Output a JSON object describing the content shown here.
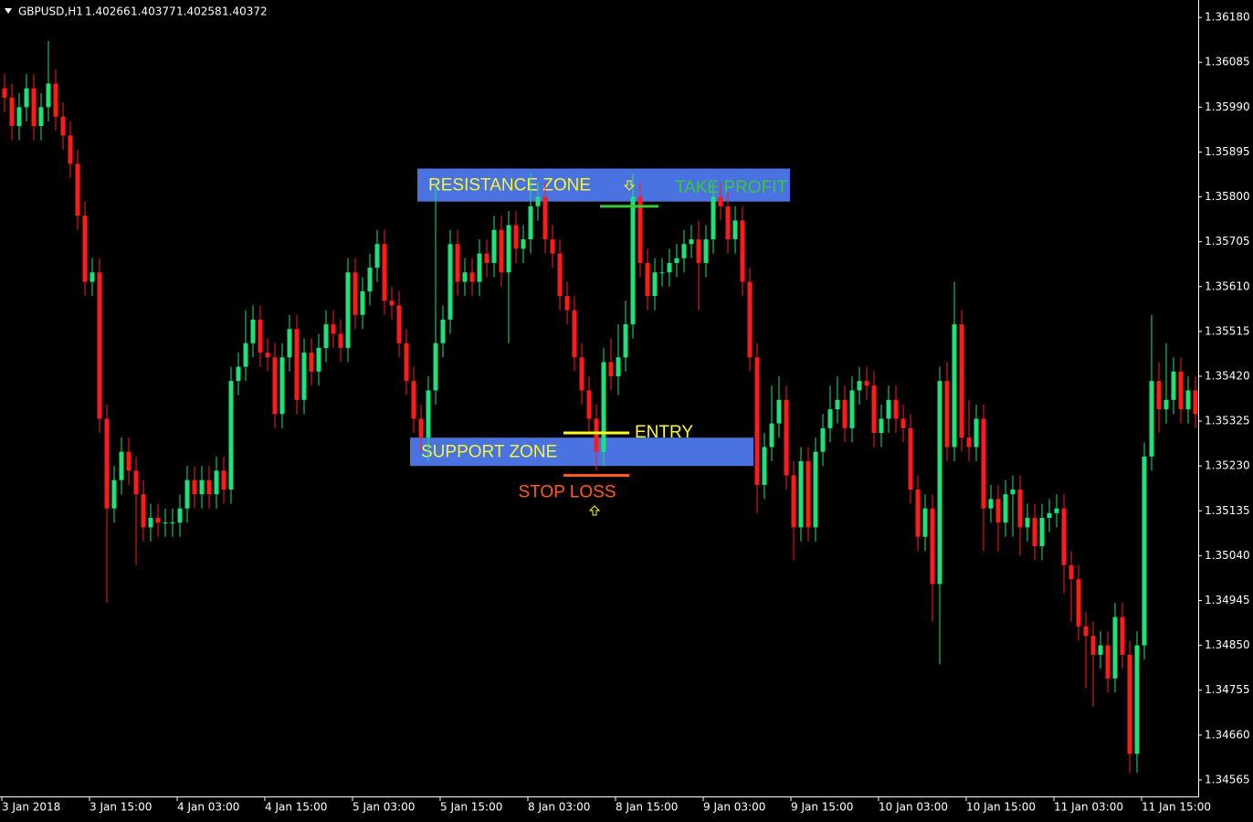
{
  "chart_data": {
    "type": "candlestick",
    "symbol": "GBPUSD,H1",
    "quote": [
      1.40266,
      1.40377,
      1.40258,
      1.40372
    ],
    "up_color": "#1de27a",
    "down_color": "#ff1a1a",
    "zone_color": "#4a72e0",
    "zone_text_color": "#f5f53c",
    "xlim": [
      -0.625,
      163.375
    ],
    "xticks": [
      {
        "value": 0,
        "label": "3 Jan 2018"
      },
      {
        "value": 12,
        "label": "3 Jan 15:00"
      },
      {
        "value": 24,
        "label": "4 Jan 03:00"
      },
      {
        "value": 36,
        "label": "4 Jan 15:00"
      },
      {
        "value": 48,
        "label": "5 Jan 03:00"
      },
      {
        "value": 60,
        "label": "5 Jan 15:00"
      },
      {
        "value": 72,
        "label": "8 Jan 03:00"
      },
      {
        "value": 84,
        "label": "8 Jan 15:00"
      },
      {
        "value": 96,
        "label": "9 Jan 03:00"
      },
      {
        "value": 108,
        "label": "9 Jan 15:00"
      },
      {
        "value": 120,
        "label": "10 Jan 03:00"
      },
      {
        "value": 132,
        "label": "10 Jan 15:00"
      },
      {
        "value": 144,
        "label": "11 Jan 03:00"
      },
      {
        "value": 156,
        "label": "11 Jan 15:00"
      }
    ],
    "ylim": [
      1.3453,
      1.36217
    ],
    "yticks": [
      {
        "value": 1.3618,
        "label": "1.36180"
      },
      1.36085,
      {
        "value": 1.3599,
        "label": "1.35990"
      },
      1.35895,
      {
        "value": 1.358,
        "label": "1.35800"
      },
      1.35705,
      {
        "value": 1.3561,
        "label": "1.35610"
      },
      1.35515,
      {
        "value": 1.3542,
        "label": "1.35420"
      },
      1.35325,
      {
        "value": 1.3523,
        "label": "1.35230"
      },
      1.35135,
      {
        "value": 1.3504,
        "label": "1.35040"
      },
      1.34945,
      {
        "value": 1.3485,
        "label": "1.34850"
      },
      1.34755,
      {
        "value": 1.3466,
        "label": "1.34660"
      },
      1.34565
    ],
    "open": [
      1.3603,
      1.3601,
      1.3595,
      1.3599,
      1.3603,
      1.3595,
      1.3599,
      1.3604,
      1.3597,
      1.3593,
      1.3587,
      1.3576,
      1.3562,
      1.3564,
      1.3533,
      1.3514,
      1.352,
      1.3526,
      1.3522,
      1.3517,
      1.351,
      1.3512,
      1.3511,
      1.3511,
      1.3511,
      1.3514,
      1.352,
      1.3517,
      1.352,
      1.3517,
      1.3522,
      1.3518,
      1.3541,
      1.3544,
      1.3549,
      1.3554,
      1.3547,
      1.3546,
      1.3534,
      1.3546,
      1.3552,
      1.3537,
      1.3547,
      1.3543,
      1.3548,
      1.3553,
      1.3551,
      1.3548,
      1.3564,
      1.3555,
      1.356,
      1.3565,
      1.357,
      1.3558,
      1.3557,
      1.3549,
      1.3541,
      1.3533,
      1.3529,
      1.3539,
      1.3549,
      1.3554,
      1.357,
      1.3562,
      1.3564,
      1.3562,
      1.3568,
      1.3566,
      1.3573,
      1.3564,
      1.3574,
      1.3569,
      1.3571,
      1.3578,
      1.358,
      1.3571,
      1.3568,
      1.3559,
      1.3556,
      1.3546,
      1.3539,
      1.3533,
      1.3526,
      1.3545,
      1.3542,
      1.3546,
      1.3553,
      1.358,
      1.3566,
      1.3559,
      1.3564,
      1.3564,
      1.3566,
      1.3567,
      1.357,
      1.3571,
      1.3566,
      1.3571,
      1.358,
      1.3578,
      1.3571,
      1.3575,
      1.3562,
      1.3546,
      1.3519,
      1.3527,
      1.3532,
      1.3537,
      1.3521,
      1.351,
      1.3524,
      1.351,
      1.3526,
      1.3531,
      1.3535,
      1.3537,
      1.3531,
      1.3539,
      1.3541,
      1.354,
      1.353,
      1.3533,
      1.3537,
      1.3533,
      1.3531,
      1.3518,
      1.3508,
      1.3514,
      1.3498,
      1.3541,
      1.3527,
      1.3553,
      1.3529,
      1.3527,
      1.3533,
      1.3514,
      1.3516,
      1.3511,
      1.3517,
      1.3518,
      1.351,
      1.3512,
      1.3506,
      1.3512,
      1.3513,
      1.3514,
      1.3502,
      1.3499,
      1.3489,
      1.3487,
      1.3483,
      1.3485,
      1.3478,
      1.3491,
      1.3483,
      1.3462,
      1.3485,
      1.3525,
      1.3541,
      1.3535,
      1.3537,
      1.3543,
      1.3535,
      1.3539
    ],
    "high": [
      1.3606,
      1.3604,
      1.3602,
      1.3606,
      1.3606,
      1.3602,
      1.3613,
      1.3607,
      1.36,
      1.3596,
      1.359,
      1.3579,
      1.3567,
      1.3567,
      1.3536,
      1.3523,
      1.3529,
      1.3529,
      1.3525,
      1.352,
      1.3515,
      1.3515,
      1.3514,
      1.3514,
      1.3517,
      1.3523,
      1.3523,
      1.3523,
      1.3523,
      1.3525,
      1.3525,
      1.3544,
      1.3547,
      1.3556,
      1.3557,
      1.3557,
      1.355,
      1.3549,
      1.3549,
      1.3555,
      1.3555,
      1.355,
      1.355,
      1.3551,
      1.3556,
      1.3556,
      1.3554,
      1.3567,
      1.3567,
      1.3563,
      1.3568,
      1.3573,
      1.3573,
      1.3561,
      1.356,
      1.3552,
      1.3544,
      1.3536,
      1.3542,
      1.3583,
      1.3557,
      1.3573,
      1.3573,
      1.3567,
      1.3567,
      1.3571,
      1.3571,
      1.3576,
      1.3576,
      1.3577,
      1.3577,
      1.3574,
      1.3585,
      1.3583,
      1.3583,
      1.3574,
      1.3571,
      1.3562,
      1.3559,
      1.3549,
      1.3542,
      1.3536,
      1.3548,
      1.355,
      1.3553,
      1.3558,
      1.3585,
      1.3583,
      1.3569,
      1.3567,
      1.3567,
      1.3569,
      1.357,
      1.3573,
      1.3574,
      1.3575,
      1.3574,
      1.3583,
      1.3583,
      1.3581,
      1.3578,
      1.3578,
      1.3565,
      1.3549,
      1.353,
      1.354,
      1.3542,
      1.354,
      1.3524,
      1.3527,
      1.3527,
      1.3529,
      1.3534,
      1.354,
      1.3542,
      1.354,
      1.3542,
      1.3544,
      1.3544,
      1.3543,
      1.3536,
      1.354,
      1.354,
      1.3536,
      1.3534,
      1.3521,
      1.3517,
      1.3517,
      1.3544,
      1.3545,
      1.3562,
      1.3556,
      1.3537,
      1.3536,
      1.3536,
      1.3519,
      1.3519,
      1.352,
      1.3521,
      1.3521,
      1.3515,
      1.3515,
      1.3515,
      1.3516,
      1.3517,
      1.3517,
      1.3505,
      1.3502,
      1.3492,
      1.349,
      1.3488,
      1.3488,
      1.3494,
      1.3494,
      1.3486,
      1.3488,
      1.3528,
      1.3555,
      1.3545,
      1.3549,
      1.3546,
      1.3546,
      1.3542,
      1.3542
    ],
    "low": [
      1.3598,
      1.3592,
      1.3592,
      1.3596,
      1.3592,
      1.3592,
      1.3596,
      1.3594,
      1.359,
      1.3584,
      1.3573,
      1.3559,
      1.3559,
      1.353,
      1.3494,
      1.3511,
      1.3517,
      1.3519,
      1.3502,
      1.3507,
      1.3507,
      1.3508,
      1.3508,
      1.3508,
      1.3508,
      1.3511,
      1.3514,
      1.3514,
      1.3514,
      1.3514,
      1.3515,
      1.3515,
      1.3538,
      1.3541,
      1.3546,
      1.3544,
      1.3543,
      1.3531,
      1.3531,
      1.3543,
      1.3534,
      1.3534,
      1.354,
      1.354,
      1.3545,
      1.3548,
      1.3545,
      1.3545,
      1.3552,
      1.3552,
      1.3557,
      1.3562,
      1.3555,
      1.3554,
      1.3546,
      1.3538,
      1.353,
      1.3526,
      1.3524,
      1.3536,
      1.3546,
      1.3551,
      1.3559,
      1.3559,
      1.3559,
      1.3559,
      1.3563,
      1.3563,
      1.3561,
      1.3549,
      1.3566,
      1.3566,
      1.3568,
      1.3575,
      1.3568,
      1.3565,
      1.3556,
      1.3553,
      1.3543,
      1.3536,
      1.353,
      1.3522,
      1.3523,
      1.3539,
      1.3538,
      1.3543,
      1.355,
      1.3563,
      1.3556,
      1.3556,
      1.3561,
      1.3561,
      1.3563,
      1.3564,
      1.3567,
      1.3556,
      1.3563,
      1.3568,
      1.3575,
      1.3568,
      1.3568,
      1.3559,
      1.3543,
      1.3513,
      1.3516,
      1.3524,
      1.3529,
      1.3518,
      1.3503,
      1.3507,
      1.3507,
      1.3507,
      1.3523,
      1.3528,
      1.3532,
      1.3528,
      1.3528,
      1.3536,
      1.3537,
      1.3527,
      1.3527,
      1.353,
      1.353,
      1.3528,
      1.3515,
      1.3505,
      1.3505,
      1.349,
      1.3481,
      1.3524,
      1.3524,
      1.3526,
      1.3524,
      1.3524,
      1.3505,
      1.3511,
      1.3505,
      1.3508,
      1.3508,
      1.3504,
      1.3507,
      1.3503,
      1.3503,
      1.3509,
      1.351,
      1.3496,
      1.349,
      1.3486,
      1.3476,
      1.3472,
      1.348,
      1.3475,
      1.3475,
      1.348,
      1.3458,
      1.3458,
      1.3482,
      1.3522,
      1.353,
      1.3532,
      1.3534,
      1.3532,
      1.3532,
      1.3531
    ],
    "close": [
      1.3601,
      1.3595,
      1.3599,
      1.3603,
      1.3595,
      1.3599,
      1.3604,
      1.3597,
      1.3593,
      1.3587,
      1.3576,
      1.3562,
      1.3564,
      1.3533,
      1.3514,
      1.352,
      1.3526,
      1.3522,
      1.3517,
      1.351,
      1.3512,
      1.3511,
      1.3511,
      1.3511,
      1.3514,
      1.352,
      1.3517,
      1.352,
      1.3517,
      1.3522,
      1.3518,
      1.3541,
      1.3544,
      1.3549,
      1.3554,
      1.3547,
      1.3546,
      1.3534,
      1.3546,
      1.3552,
      1.3537,
      1.3547,
      1.3543,
      1.3548,
      1.3553,
      1.3551,
      1.3548,
      1.3564,
      1.3555,
      1.356,
      1.3565,
      1.357,
      1.3558,
      1.3557,
      1.3549,
      1.3541,
      1.3533,
      1.3529,
      1.3539,
      1.3549,
      1.3554,
      1.357,
      1.3562,
      1.3564,
      1.3562,
      1.3568,
      1.3566,
      1.3573,
      1.3564,
      1.3574,
      1.3569,
      1.3571,
      1.3578,
      1.358,
      1.3571,
      1.3568,
      1.3559,
      1.3556,
      1.3546,
      1.3539,
      1.3533,
      1.3526,
      1.3545,
      1.3542,
      1.3546,
      1.3553,
      1.358,
      1.3566,
      1.3559,
      1.3564,
      1.3564,
      1.3566,
      1.3567,
      1.357,
      1.3571,
      1.3566,
      1.3571,
      1.358,
      1.3578,
      1.3571,
      1.3575,
      1.3562,
      1.3546,
      1.3519,
      1.3527,
      1.3532,
      1.3537,
      1.3521,
      1.351,
      1.3524,
      1.351,
      1.3526,
      1.3531,
      1.3535,
      1.3537,
      1.3531,
      1.3539,
      1.3541,
      1.354,
      1.353,
      1.3533,
      1.3537,
      1.3533,
      1.3531,
      1.3518,
      1.3508,
      1.3514,
      1.3498,
      1.3541,
      1.3527,
      1.3553,
      1.3529,
      1.3527,
      1.3533,
      1.3514,
      1.3516,
      1.3511,
      1.3517,
      1.3518,
      1.351,
      1.3512,
      1.3506,
      1.3512,
      1.3513,
      1.3514,
      1.3502,
      1.3499,
      1.3489,
      1.3487,
      1.3483,
      1.3485,
      1.3478,
      1.3491,
      1.3483,
      1.3462,
      1.3485,
      1.3525,
      1.3541,
      1.3535,
      1.3537,
      1.3543,
      1.3535,
      1.3539,
      1.3534
    ],
    "zones": [
      {
        "label": "RESISTANCE ZONE",
        "top": 1.3586,
        "bottom": 1.3579,
        "start": 57,
        "end": 107
      },
      {
        "label": "SUPPORT ZONE",
        "top": 1.3529,
        "bottom": 1.3523,
        "start": 56,
        "end": 102
      }
    ],
    "levels": [
      {
        "label": "TAKE PROFIT",
        "price": 1.3578,
        "start": 82,
        "end": 89,
        "color": "#3cc63c"
      },
      {
        "label": "ENTRY",
        "price": 1.353,
        "start": 77,
        "end": 85,
        "color": "#ffff1a"
      },
      {
        "label": "STOP LOSS",
        "price": 1.3521,
        "start": 77,
        "end": 85,
        "color": "#ff5a1a"
      }
    ]
  }
}
